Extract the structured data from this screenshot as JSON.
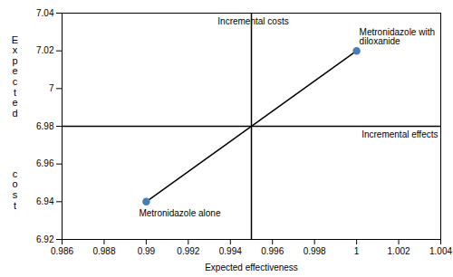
{
  "chart_data": {
    "type": "scatter",
    "x": [
      0.99,
      1
    ],
    "series": [
      {
        "type": "line",
        "color": "#000000",
        "values": [
          6.94,
          7.02
        ]
      },
      {
        "type": "scatter",
        "color": "#4a7db5",
        "values": [
          6.94,
          7.02
        ],
        "point_labels": [
          "Metronidazole alone",
          "Metronidazole with\ndiloxanide"
        ]
      }
    ],
    "crosshair": {
      "x": 0.995,
      "y": 6.98,
      "color": "#000000",
      "x_label": "Incremental costs",
      "y_label": "Incremental effects"
    },
    "xlabel": "Expected effectiveness",
    "ylabel": [
      "Expected",
      "cost"
    ],
    "xlim": [
      0.986,
      1.004
    ],
    "ylim": [
      6.92,
      7.04
    ],
    "xticks": [
      0.986,
      0.988,
      0.99,
      0.992,
      0.994,
      0.996,
      0.998,
      1,
      1.002,
      1.004
    ],
    "yticks": [
      6.92,
      6.94,
      6.96,
      6.98,
      7,
      7.02,
      7.04
    ]
  }
}
